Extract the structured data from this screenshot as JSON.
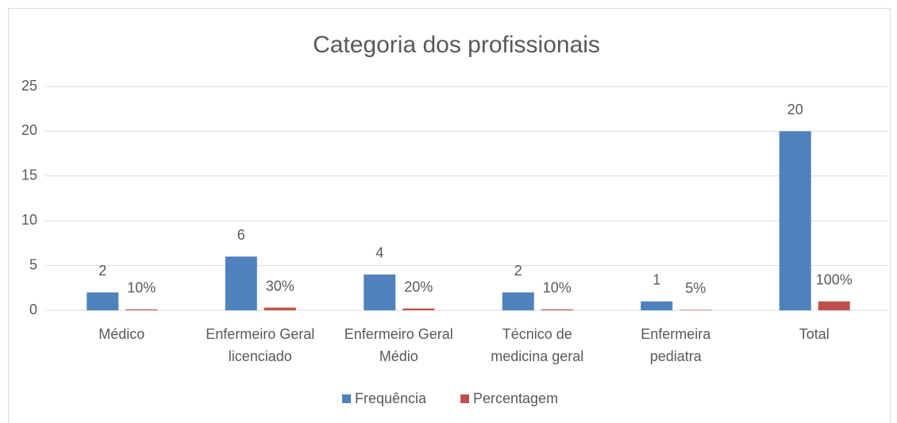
{
  "chart_data": {
    "type": "bar",
    "title": "Categoria dos profissionais",
    "categories": [
      "Médico",
      "Enfermeiro Geral licenciado",
      "Enfermeiro Geral Médio",
      "Técnico de medicina geral",
      "Enfermeira pediatra",
      "Total"
    ],
    "series": [
      {
        "name": "Frequência",
        "color": "#4f81bd",
        "values": [
          2,
          6,
          4,
          2,
          1,
          20
        ]
      },
      {
        "name": "Percentagem",
        "color": "#c0504d",
        "values": [
          0.1,
          0.3,
          0.2,
          0.1,
          0.05,
          1
        ],
        "value_labels": [
          "10%",
          "30%",
          "20%",
          "10%",
          "5%",
          "100%"
        ]
      }
    ],
    "ylim": [
      0,
      25
    ],
    "yticks": [
      0,
      5,
      10,
      15,
      20,
      25
    ],
    "grid": true,
    "legend": "bottom"
  }
}
